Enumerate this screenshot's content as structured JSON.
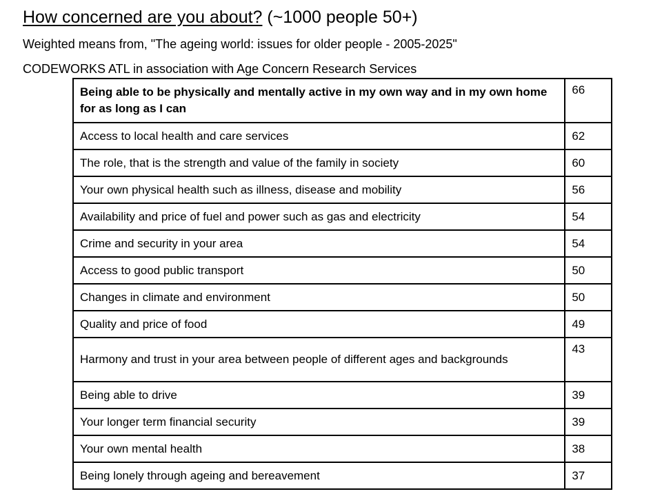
{
  "header": {
    "title_main": "How concerned are you about?",
    "title_sub": " (~1000 people 50+)",
    "subtitle": "Weighted means from, \"The ageing world: issues for older people - 2005-2025\"",
    "source": "CODEWORKS ATL in association with Age Concern Research Services"
  },
  "table": {
    "rows": [
      {
        "issue": "Being able to be physically and mentally active in my own way and in my own home for as long as I can",
        "score": "66"
      },
      {
        "issue": "Access to local health and care services",
        "score": "62"
      },
      {
        "issue": "The role, that is the strength and value of the family in society",
        "score": "60"
      },
      {
        "issue": "Your own physical health such as illness, disease and mobility",
        "score": "56"
      },
      {
        "issue": "Availability and price of fuel and power such as gas and electricity",
        "score": "54"
      },
      {
        "issue": "Crime and security in your area",
        "score": "54"
      },
      {
        "issue": "Access to good public transport",
        "score": "50"
      },
      {
        "issue": "Changes in climate and environment",
        "score": "50"
      },
      {
        "issue": "Quality and price of food",
        "score": "49"
      },
      {
        "issue": "Harmony and trust in your area between people of different ages and backgrounds",
        "score": "43"
      },
      {
        "issue": "Being able to drive",
        "score": "39"
      },
      {
        "issue": "Your longer term financial security",
        "score": "39"
      },
      {
        "issue": "Your own mental health",
        "score": "38"
      },
      {
        "issue": "Being lonely through ageing and bereavement",
        "score": "37"
      }
    ]
  }
}
